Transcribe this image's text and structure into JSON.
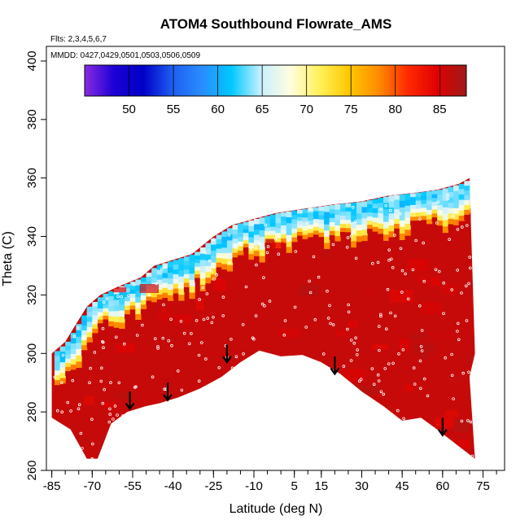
{
  "chart_data": {
    "type": "heatmap",
    "title": "ATOM4 Southbound Flowrate_AMS",
    "note_flights": "Flts: 2,3,4,5,6,7",
    "note_dates": "MMDD: 0427,0429,0501,0503,0506,0509",
    "xlabel": "Latitude (deg N)",
    "ylabel": "Theta (C)",
    "xlim": [
      -87,
      83
    ],
    "ylim": [
      260,
      405
    ],
    "x_ticks": [
      -85,
      -70,
      -55,
      -40,
      -25,
      -10,
      5,
      15,
      30,
      45,
      60,
      75
    ],
    "x_tick_labels": [
      "-85",
      "-70",
      "-55",
      "-40",
      "-25",
      "-10",
      "5",
      "15",
      "30",
      "45",
      "60",
      "75"
    ],
    "x_minor_step": 5,
    "y_ticks": [
      260,
      280,
      300,
      320,
      340,
      360,
      380,
      400
    ],
    "y_tick_labels": [
      "260",
      "280",
      "300",
      "320",
      "340",
      "360",
      "380",
      "400"
    ],
    "colorbar": {
      "range": [
        45,
        88
      ],
      "ticks": [
        50,
        55,
        60,
        65,
        70,
        75,
        80,
        85
      ],
      "tick_labels": [
        "50",
        "55",
        "60",
        "65",
        "70",
        "75",
        "80",
        "85"
      ],
      "colors": [
        "#8a2be2",
        "#1c00d4",
        "#0000c8",
        "#1e5ff0",
        "#2a8cff",
        "#00c8ff",
        "#c8f0ff",
        "#fffde0",
        "#fff15a",
        "#ffc800",
        "#ff8c00",
        "#ff2a00",
        "#e00000",
        "#9e1a1a"
      ]
    },
    "data_lower_boundary": [
      [
        -85,
        278
      ],
      [
        -78,
        274
      ],
      [
        -72,
        264
      ],
      [
        -68,
        264
      ],
      [
        -63,
        276
      ],
      [
        -57,
        280
      ],
      [
        -50,
        282
      ],
      [
        -45,
        283
      ],
      [
        -38,
        285
      ],
      [
        -30,
        288
      ],
      [
        -22,
        292
      ],
      [
        -15,
        297
      ],
      [
        -8,
        301
      ],
      [
        0,
        299
      ],
      [
        8,
        299.5
      ],
      [
        15,
        297
      ],
      [
        22,
        293
      ],
      [
        30,
        287
      ],
      [
        38,
        282
      ],
      [
        45,
        277
      ],
      [
        52,
        278
      ],
      [
        58,
        274
      ],
      [
        65,
        269
      ],
      [
        72,
        264
      ]
    ],
    "data_upper_boundary": [
      [
        -85,
        300
      ],
      [
        -80,
        304
      ],
      [
        -76,
        310
      ],
      [
        -72,
        316
      ],
      [
        -67,
        320
      ],
      [
        -60,
        323
      ],
      [
        -52,
        326
      ],
      [
        -47,
        330
      ],
      [
        -40,
        332
      ],
      [
        -33,
        334
      ],
      [
        -25,
        340
      ],
      [
        -18,
        344
      ],
      [
        -10,
        346
      ],
      [
        -2,
        348
      ],
      [
        5,
        349
      ],
      [
        12,
        350
      ],
      [
        20,
        351
      ],
      [
        30,
        352
      ],
      [
        40,
        354
      ],
      [
        50,
        355
      ],
      [
        58,
        356
      ],
      [
        66,
        358
      ],
      [
        70,
        360
      ],
      [
        72,
        300
      ],
      [
        70,
        292
      ]
    ],
    "cap_layer_value_range": [
      50,
      66
    ],
    "interior_value": 86,
    "arrows": [
      {
        "lat": -56,
        "theta_top": 287,
        "theta_bottom": 281
      },
      {
        "lat": -42,
        "theta_top": 290,
        "theta_bottom": 284
      },
      {
        "lat": -20,
        "theta_top": 303,
        "theta_bottom": 297
      },
      {
        "lat": 20,
        "theta_top": 299,
        "theta_bottom": 293
      },
      {
        "lat": 60,
        "theta_top": 278,
        "theta_bottom": 272
      }
    ]
  }
}
